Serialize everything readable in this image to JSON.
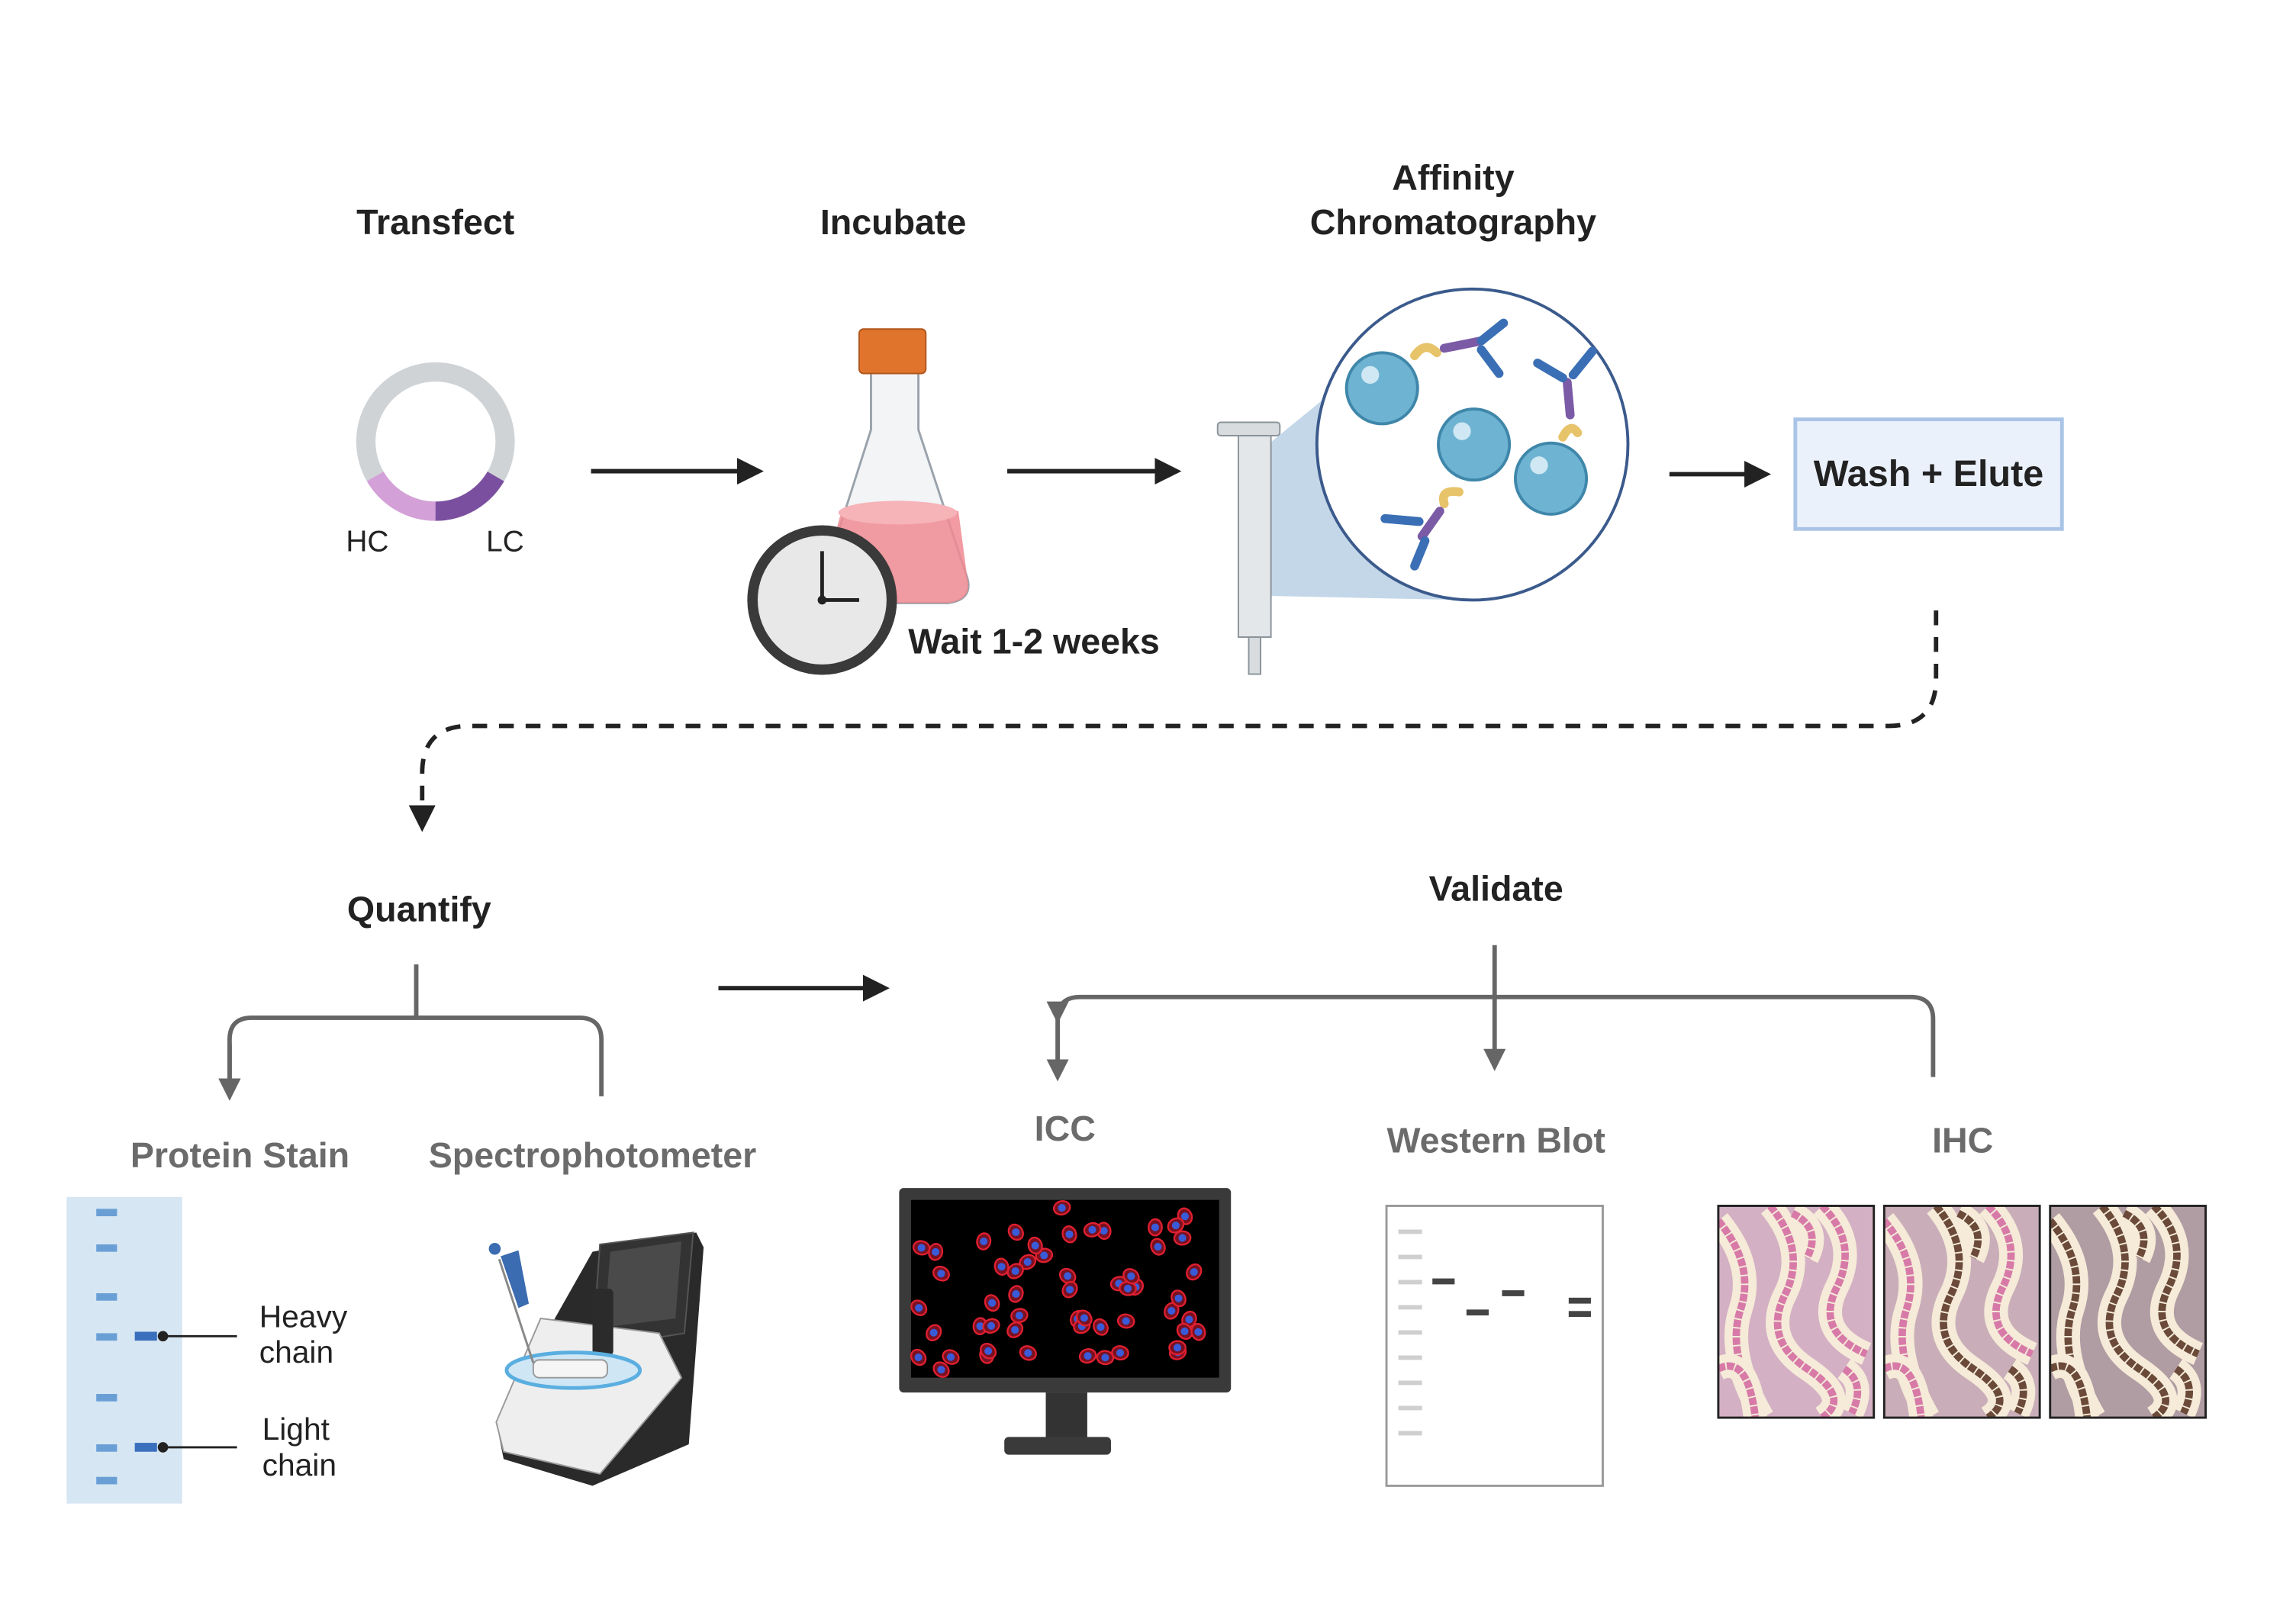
{
  "steps": {
    "transfect": "Transfect",
    "incubate": "Incubate",
    "affinity_line1": "Affinity",
    "affinity_line2": "Chromatography",
    "wash_elute": "Wash + Elute",
    "quantify": "Quantify",
    "validate": "Validate"
  },
  "plasmid": {
    "hc": "HC",
    "lc": "LC",
    "hc_color": "#d4a0d8",
    "lc_color": "#7b4fa0"
  },
  "incubation": {
    "wait": "Wait 1-2 weeks"
  },
  "quantify_methods": {
    "protein_stain": "Protein Stain",
    "spectrophotometer": "Spectrophotometer",
    "heavy_line1": "Heavy",
    "heavy_line2": "chain",
    "light_line1": "Light",
    "light_line2": "chain"
  },
  "validate_methods": {
    "icc": "ICC",
    "western_blot": "Western Blot",
    "ihc": "IHC"
  },
  "colors": {
    "bead": "#6fb3d2",
    "wash_box_fill": "#eaf1fb",
    "wash_box_stroke": "#a9c4e6",
    "gel": "#d6e6f2",
    "arrow": "#222222",
    "tree": "#666666"
  }
}
